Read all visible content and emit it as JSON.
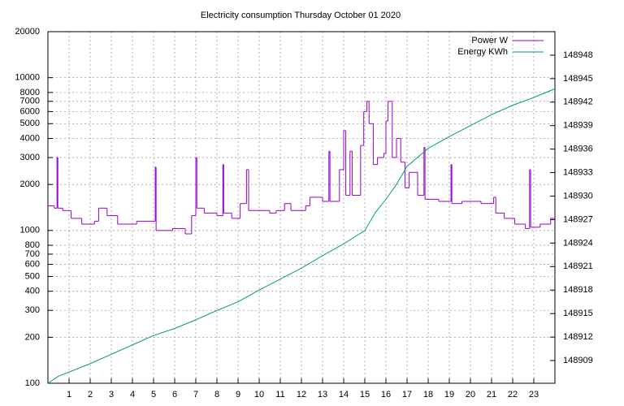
{
  "chart_data": {
    "type": "line",
    "title": "Electricity consumption Thursday October 01 2020",
    "xlim": [
      0,
      24
    ],
    "xticks": [
      1,
      2,
      3,
      4,
      5,
      6,
      7,
      8,
      9,
      10,
      11,
      12,
      13,
      14,
      15,
      16,
      17,
      18,
      19,
      20,
      21,
      22,
      23
    ],
    "ylim": [
      100,
      20000
    ],
    "yscale": "log",
    "yticks": [
      100,
      200,
      300,
      400,
      500,
      600,
      700,
      800,
      1000,
      2000,
      3000,
      4000,
      5000,
      6000,
      7000,
      8000,
      10000,
      20000
    ],
    "y2lim": [
      148906.1,
      148951.0
    ],
    "y2ticks": [
      148909,
      148912,
      148915,
      148918,
      148921,
      148924,
      148927,
      148930,
      148933,
      148936,
      148939,
      148942,
      148945,
      148948
    ],
    "grid": true,
    "legend": "top-right",
    "series": [
      {
        "name": "Power W",
        "color": "#9400d3",
        "step": true,
        "x": [
          0,
          0.3,
          0.43,
          0.47,
          0.7,
          1.1,
          1.6,
          2.2,
          2.4,
          2.8,
          3.3,
          4.2,
          4.7,
          5.08,
          5.12,
          5.9,
          6.5,
          6.8,
          7.0,
          7.05,
          7.4,
          8.0,
          8.28,
          8.32,
          8.7,
          9.1,
          9.4,
          9.5,
          10.5,
          10.8,
          11.2,
          11.5,
          12.2,
          12.4,
          13.0,
          13.3,
          13.35,
          13.8,
          14.0,
          14.1,
          14.3,
          14.4,
          14.8,
          14.95,
          15.1,
          15.2,
          15.4,
          15.6,
          15.9,
          16.0,
          16.1,
          16.3,
          16.5,
          16.7,
          16.9,
          17.1,
          17.5,
          17.8,
          17.85,
          18.5,
          19.08,
          19.12,
          19.6,
          20.5,
          21.1,
          21.2,
          21.6,
          22.1,
          22.6,
          22.8,
          22.85,
          23.3,
          23.8,
          24
        ],
        "values": [
          1450,
          1400,
          3000,
          1400,
          1350,
          1200,
          1100,
          1150,
          1400,
          1250,
          1100,
          1150,
          1150,
          2600,
          1000,
          1030,
          950,
          1250,
          3000,
          1400,
          1300,
          1250,
          2700,
          1300,
          1200,
          1500,
          2500,
          1350,
          1300,
          1350,
          1500,
          1350,
          1450,
          1650,
          1550,
          3300,
          1550,
          2500,
          4500,
          1700,
          3300,
          1700,
          3600,
          6000,
          7000,
          5000,
          2700,
          3000,
          3200,
          5200,
          7000,
          3000,
          4000,
          2800,
          1900,
          2400,
          1700,
          3500,
          1600,
          1550,
          2700,
          1500,
          1550,
          1500,
          1650,
          1300,
          1200,
          1100,
          1030,
          2500,
          1050,
          1100,
          1200,
          1200
        ]
      },
      {
        "name": "Energy KWh",
        "color": "#009e73",
        "axis": "y2",
        "x": [
          0,
          0.5,
          2,
          3,
          4,
          5,
          6,
          7,
          8,
          9,
          10,
          11,
          12,
          13,
          14,
          15,
          15.5,
          16,
          16.5,
          17,
          18,
          19,
          20,
          21,
          22,
          23,
          24
        ],
        "values": [
          148906.1,
          148907.0,
          148908.6,
          148909.8,
          148911.0,
          148912.2,
          148913.1,
          148914.2,
          148915.4,
          148916.5,
          148918.0,
          148919.4,
          148920.8,
          148922.4,
          148923.9,
          148925.6,
          148927.9,
          148929.6,
          148931.5,
          148933.8,
          148936.1,
          148937.6,
          148939.0,
          148940.4,
          148941.6,
          148942.6,
          148943.7
        ]
      }
    ]
  }
}
